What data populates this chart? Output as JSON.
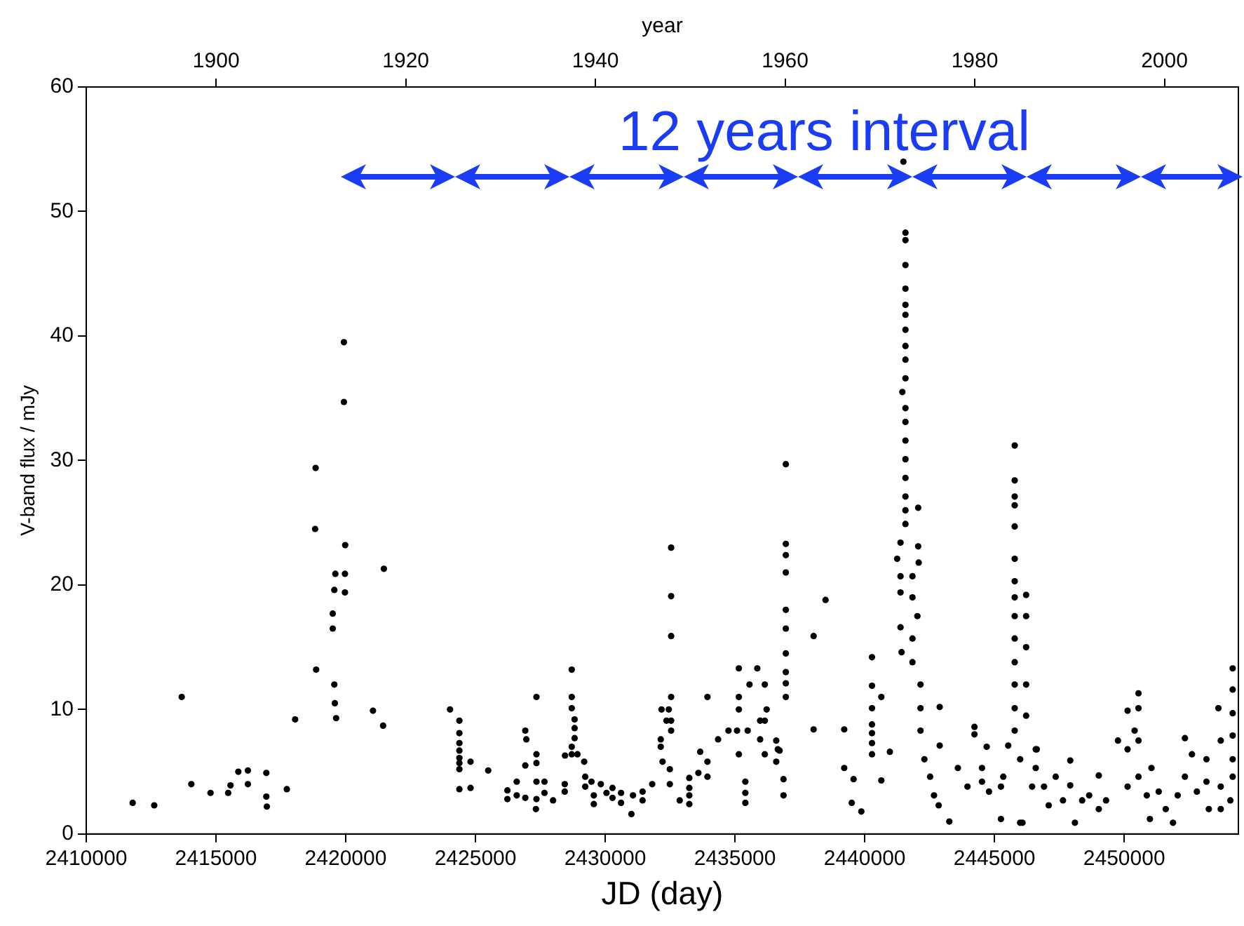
{
  "chart_data": {
    "type": "scatter",
    "xlabel": "JD (day)",
    "ylabel": "V-band flux / mJy",
    "x2label": "year",
    "annotations": [
      "12 years interval"
    ],
    "xlim": [
      2410000,
      2454400
    ],
    "xticks": [
      2410000,
      2415000,
      2420000,
      2425000,
      2430000,
      2435000,
      2440000,
      2445000,
      2450000
    ],
    "x2lim": [
      1886.3,
      2007.8
    ],
    "x2ticks": [
      1900,
      1920,
      1940,
      1960,
      1980,
      2000
    ],
    "ylim": [
      0,
      60
    ],
    "yticks": [
      0,
      10,
      20,
      30,
      40,
      50,
      60
    ],
    "marker": "circle",
    "series": [
      {
        "color": "#000000",
        "x": [
          2411790,
          2412620,
          2413680,
          2414050,
          2414790,
          2415470,
          2415560,
          2415860,
          2416230,
          2416230,
          2416940,
          2416940,
          2416960,
          2417730,
          2418050,
          2418840,
          2418820,
          2418860,
          2419500,
          2419500,
          2419560,
          2419600,
          2419560,
          2419580,
          2419630,
          2419930,
          2419930,
          2419980,
          2419970,
          2419970,
          2421050,
          2421440,
          2421470,
          2424020,
          2424380,
          2424380,
          2424380,
          2424380,
          2424380,
          2424380,
          2424380,
          2424380,
          2424810,
          2424810,
          2425490,
          2426230,
          2426230,
          2426590,
          2426590,
          2426920,
          2426960,
          2426920,
          2426920,
          2427350,
          2427350,
          2427350,
          2427350,
          2427350,
          2427660,
          2427660,
          2427330,
          2427990,
          2428440,
          2428440,
          2428450,
          2428710,
          2428710,
          2428710,
          2428820,
          2428820,
          2428820,
          2428710,
          2428710,
          2428930,
          2429190,
          2429230,
          2429230,
          2429470,
          2429560,
          2429560,
          2429830,
          2430050,
          2430280,
          2430280,
          2430610,
          2430610,
          2431010,
          2431070,
          2431440,
          2431440,
          2431810,
          2432540,
          2432540,
          2432540,
          2432540,
          2432170,
          2432450,
          2432360,
          2432540,
          2432540,
          2432140,
          2432140,
          2432210,
          2432490,
          2432490,
          2432870,
          2433240,
          2433240,
          2433240,
          2433240,
          2433660,
          2433590,
          2433940,
          2433940,
          2433940,
          2434350,
          2434750,
          2435080,
          2435150,
          2435150,
          2435150,
          2435150,
          2435400,
          2435400,
          2435400,
          2435490,
          2435560,
          2435860,
          2436150,
          2436220,
          2435970,
          2436150,
          2435970,
          2436150,
          2436590,
          2436650,
          2436720,
          2436590,
          2436960,
          2436960,
          2436960,
          2436960,
          2436960,
          2436960,
          2436960,
          2436960,
          2436960,
          2436960,
          2436870,
          2436870,
          2438030,
          2438490,
          2438030,
          2439210,
          2439210,
          2439570,
          2439500,
          2439870,
          2440280,
          2440280,
          2440640,
          2440280,
          2440280,
          2440280,
          2440280,
          2440280,
          2440970,
          2440640,
          2441490,
          2441570,
          2441570,
          2441570,
          2441570,
          2441570,
          2441570,
          2441570,
          2441570,
          2441570,
          2441570,
          2441450,
          2441570,
          2441570,
          2441570,
          2441570,
          2441570,
          2441570,
          2441570,
          2442060,
          2441570,
          2441380,
          2442060,
          2441250,
          2441380,
          2441840,
          2442080,
          2441380,
          2441840,
          2442030,
          2441380,
          2441840,
          2441840,
          2442150,
          2442150,
          2442150,
          2441420,
          2442890,
          2442890,
          2442300,
          2442520,
          2442670,
          2442850,
          2443260,
          2443590,
          2443960,
          2444230,
          2444230,
          2444700,
          2444520,
          2444790,
          2445250,
          2445340,
          2444520,
          2445250,
          2445530,
          2445780,
          2445780,
          2445780,
          2445780,
          2445780,
          2445780,
          2445780,
          2445780,
          2445780,
          2445780,
          2445780,
          2445780,
          2445780,
          2445780,
          2446220,
          2446220,
          2446220,
          2446220,
          2446220,
          2445990,
          2446630,
          2446450,
          2445990,
          2446080,
          2446590,
          2446590,
          2446910,
          2447090,
          2447360,
          2447640,
          2447920,
          2447920,
          2448100,
          2448380,
          2448650,
          2449020,
          2449020,
          2449300,
          2449760,
          2450130,
          2450130,
          2450130,
          2450400,
          2450550,
          2450550,
          2450550,
          2450550,
          2450870,
          2451050,
          2450990,
          2451330,
          2451600,
          2451880,
          2452060,
          2452340,
          2452340,
          2452610,
          2452800,
          2453170,
          2453170,
          2453260,
          2453630,
          2453720,
          2453720,
          2453720,
          2454090,
          2454180,
          2454180,
          2454180,
          2454180,
          2454180,
          2454180
        ],
        "values": [
          2.5,
          2.3,
          11.0,
          4.0,
          3.3,
          3.3,
          3.9,
          5.0,
          5.1,
          4.0,
          4.9,
          3.0,
          2.2,
          3.6,
          9.2,
          29.4,
          24.5,
          13.2,
          17.7,
          16.5,
          19.6,
          20.9,
          12.0,
          10.5,
          9.3,
          39.5,
          34.7,
          23.2,
          20.9,
          19.4,
          9.9,
          8.7,
          21.3,
          10.0,
          9.1,
          8.1,
          7.3,
          6.7,
          6.1,
          5.7,
          5.2,
          3.6,
          3.7,
          5.8,
          5.1,
          3.5,
          2.8,
          4.2,
          3.1,
          8.3,
          7.6,
          5.5,
          2.9,
          11.0,
          6.4,
          5.7,
          4.2,
          2.8,
          4.2,
          3.3,
          2.0,
          2.7,
          4.0,
          3.4,
          6.3,
          13.2,
          11.0,
          10.1,
          9.2,
          8.5,
          7.7,
          7.0,
          6.4,
          6.4,
          5.8,
          4.6,
          3.8,
          4.2,
          3.1,
          2.4,
          4.0,
          3.3,
          3.7,
          2.9,
          3.3,
          2.5,
          1.6,
          3.1,
          2.7,
          3.4,
          4.0,
          23.0,
          19.1,
          15.9,
          11.0,
          10.0,
          10.0,
          9.1,
          9.1,
          8.3,
          7.6,
          7.0,
          5.8,
          5.2,
          4.0,
          2.7,
          4.5,
          3.7,
          3.1,
          2.4,
          6.6,
          4.9,
          11.0,
          5.8,
          4.6,
          7.6,
          8.3,
          8.3,
          13.3,
          11.0,
          10.0,
          6.4,
          4.2,
          3.3,
          2.5,
          8.3,
          12.0,
          13.3,
          12.0,
          10.0,
          9.1,
          9.1,
          7.6,
          6.4,
          7.5,
          6.8,
          6.7,
          5.8,
          29.7,
          23.3,
          22.4,
          21.0,
          18.0,
          16.5,
          14.5,
          13.0,
          12.1,
          11.0,
          4.4,
          3.1,
          15.9,
          18.8,
          8.4,
          8.4,
          5.3,
          4.4,
          2.5,
          1.8,
          14.2,
          11.9,
          11.0,
          10.1,
          8.8,
          8.1,
          7.3,
          6.4,
          6.6,
          4.3,
          54.0,
          48.3,
          47.7,
          45.7,
          43.8,
          42.5,
          41.7,
          40.5,
          39.2,
          38.1,
          36.6,
          35.5,
          34.2,
          33.1,
          31.6,
          30.1,
          28.6,
          27.1,
          26.0,
          26.2,
          24.9,
          23.4,
          23.1,
          22.1,
          20.7,
          20.7,
          21.8,
          19.4,
          19.0,
          17.5,
          16.6,
          15.7,
          13.8,
          12.0,
          10.1,
          8.3,
          14.6,
          10.2,
          7.1,
          6.0,
          4.6,
          3.1,
          2.3,
          1.0,
          5.3,
          3.8,
          8.6,
          8.0,
          7.0,
          5.3,
          3.4,
          1.2,
          4.6,
          4.2,
          3.8,
          7.1,
          31.2,
          28.4,
          27.1,
          26.4,
          24.7,
          22.1,
          20.3,
          19.0,
          17.5,
          15.7,
          13.8,
          12.0,
          10.1,
          8.3,
          19.2,
          17.5,
          15.0,
          12.0,
          9.5,
          6.0,
          6.8,
          3.8,
          0.9,
          0.9,
          6.8,
          5.3,
          3.8,
          2.3,
          4.6,
          2.7,
          5.9,
          3.9,
          0.9,
          2.7,
          3.1,
          4.7,
          2.0,
          2.7,
          7.5,
          9.9,
          6.8,
          3.8,
          8.3,
          11.3,
          10.1,
          7.5,
          4.6,
          3.1,
          5.3,
          1.2,
          3.4,
          2.0,
          0.9,
          3.1,
          7.7,
          4.6,
          6.4,
          3.4,
          6.0,
          4.2,
          2.0,
          10.1,
          7.5,
          3.8,
          2.0,
          2.7,
          13.3,
          11.6,
          9.7,
          7.9,
          6.0,
          4.6
        ]
      }
    ]
  }
}
